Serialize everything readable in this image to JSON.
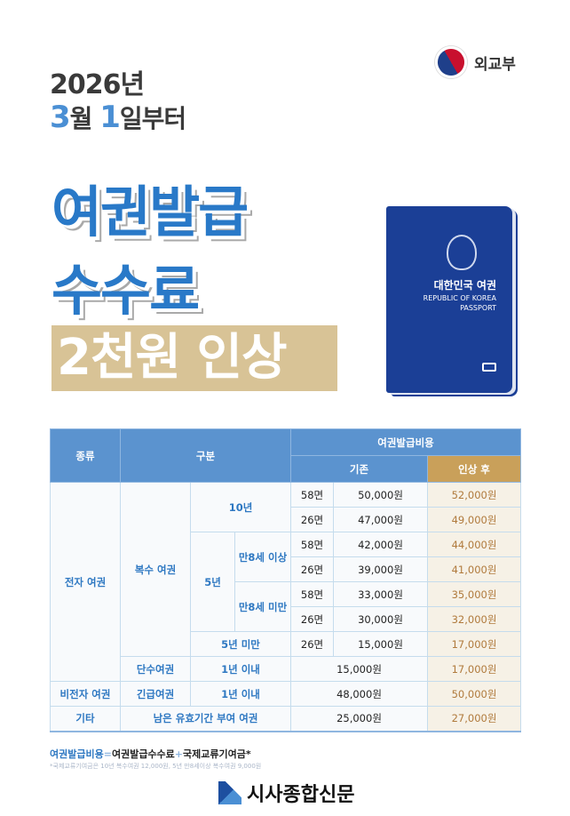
{
  "header": {
    "ministry": "외교부",
    "year": "2026년",
    "month_num": "3",
    "month_unit": "월",
    "day_num": "1",
    "day_unit": "일부터",
    "title_line1": "여권발급",
    "title_line2": "수수료",
    "title_line3": "2천원 인상"
  },
  "passport": {
    "name_ko": "대한민국 여권",
    "name_en_1": "REPUBLIC OF KOREA",
    "name_en_2": "PASSPORT"
  },
  "colors": {
    "primary": "#2979c8",
    "header_blue": "#5b93cf",
    "gold": "#c9a05a",
    "beige": "#d8c396"
  },
  "table": {
    "headers": {
      "type": "종류",
      "category": "구분",
      "cost": "여권발급비용",
      "before": "기존",
      "after": "인상 후"
    },
    "labels": {
      "epassport": "전자 여권",
      "multiple": "복수 여권",
      "y10": "10년",
      "y5": "5년",
      "over8": "만8세 이상",
      "under8": "만8세 미만",
      "under5": "5년 미만",
      "single": "단수여권",
      "within1": "1년 이내",
      "nonelectronic": "비전자 여권",
      "emergency": "긴급여권",
      "other": "기타",
      "remaining": "남은 유효기간 부여 여권"
    },
    "rows": [
      {
        "pages": "58면",
        "before": "50,000원",
        "after": "52,000원"
      },
      {
        "pages": "26면",
        "before": "47,000원",
        "after": "49,000원"
      },
      {
        "pages": "58면",
        "before": "42,000원",
        "after": "44,000원"
      },
      {
        "pages": "26면",
        "before": "39,000원",
        "after": "41,000원"
      },
      {
        "pages": "58면",
        "before": "33,000원",
        "after": "35,000원"
      },
      {
        "pages": "26면",
        "before": "30,000원",
        "after": "32,000원"
      },
      {
        "pages": "26면",
        "before": "15,000원",
        "after": "17,000원"
      },
      {
        "before": "15,000원",
        "after": "17,000원"
      },
      {
        "before": "48,000원",
        "after": "50,000원"
      },
      {
        "before": "25,000원",
        "after": "27,000원"
      }
    ]
  },
  "footer": {
    "formula_a": "여권발급비용",
    "eq": "=",
    "formula_b": "여권발급수수료",
    "plus": "+",
    "formula_c": "국제교류기여금*",
    "note": "*국제교류기여금은 10년 복수여권 12,000원, 5년 만8세이상 복수여권 9,000원",
    "brand": "시사종합신문"
  }
}
